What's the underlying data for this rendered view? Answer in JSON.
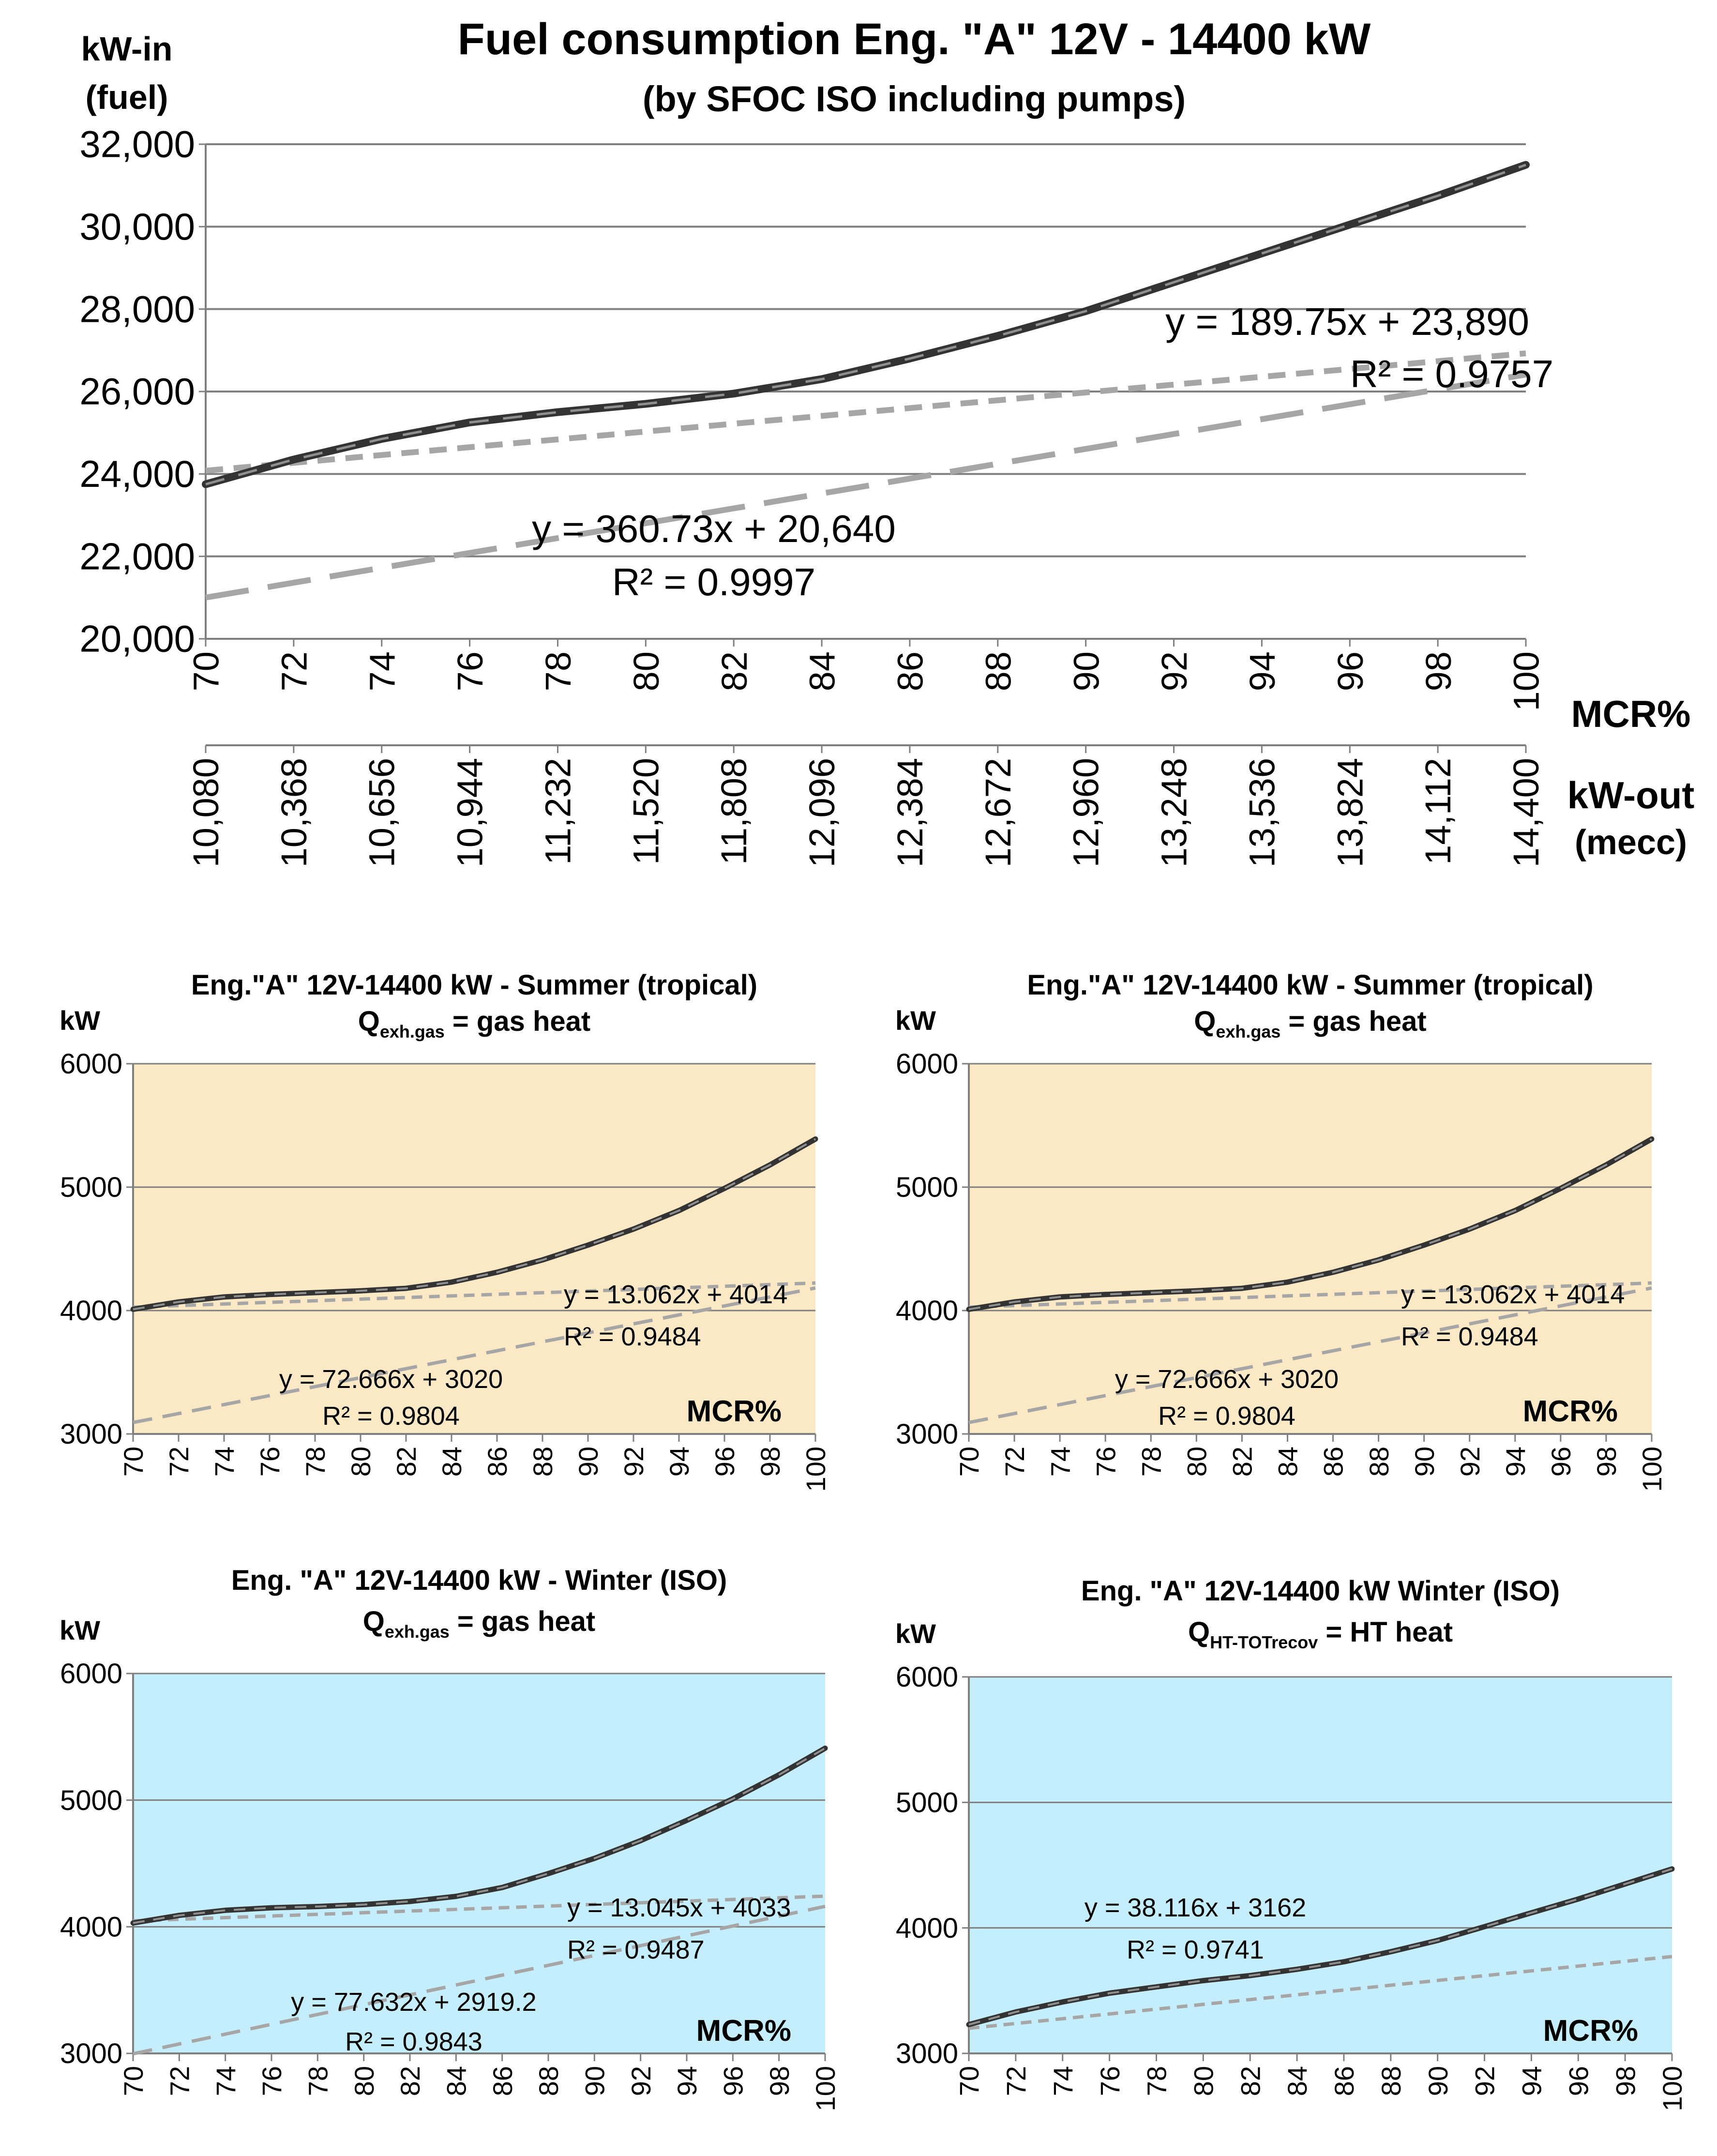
{
  "colors": {
    "background": "#ffffff",
    "summer_plot_bg": "#fbe8c4",
    "winter_plot_bg": "#c4eefb",
    "gridline": "#7f7f7f",
    "data_line": "#333333",
    "trend_line": "#a6a6a6"
  },
  "chart_data": [
    {
      "id": "fuel",
      "type": "line",
      "title": "Fuel consumption Eng. \"A\" 12V - 14400 kW",
      "subtitle": "(by SFOC ISO including pumps)",
      "ylabel": [
        "kW-in",
        "(fuel)"
      ],
      "xlabel": "MCR%",
      "x2label": [
        "kW-out",
        "(mecc)"
      ],
      "ylim": [
        20000,
        32000
      ],
      "yticks": [
        "20,000",
        "22,000",
        "24,000",
        "26,000",
        "28,000",
        "30,000",
        "32,000"
      ],
      "yvals": [
        20000,
        22000,
        24000,
        26000,
        28000,
        30000,
        32000
      ],
      "xlim": [
        70,
        100
      ],
      "xticks": [
        "70",
        "72",
        "74",
        "76",
        "78",
        "80",
        "82",
        "84",
        "86",
        "88",
        "90",
        "92",
        "94",
        "96",
        "98",
        "100"
      ],
      "x2ticks": [
        "10,080",
        "10,368",
        "10,656",
        "10,944",
        "11,232",
        "11,520",
        "11,808",
        "12,096",
        "12,384",
        "12,672",
        "12,960",
        "13,248",
        "13,536",
        "13,824",
        "14,112",
        "14,400"
      ],
      "grid": true,
      "series": [
        {
          "x": [
            70,
            72,
            74,
            76,
            78,
            80,
            82,
            84,
            86,
            88,
            90,
            92,
            94,
            96,
            98,
            100
          ],
          "y": [
            23750,
            24350,
            24850,
            25250,
            25500,
            25700,
            25950,
            26300,
            26800,
            27350,
            27950,
            28650,
            29350,
            30050,
            30750,
            31500
          ]
        }
      ],
      "trendlines": [
        {
          "label": "y = 189.75x + 23,890",
          "r2": "R² = 0.9757",
          "slope": 189.75,
          "intercept": 23890
        },
        {
          "label": "y = 360.73x + 20,640",
          "r2": "R² = 0.9997",
          "slope": 360.73,
          "intercept": 20640
        }
      ]
    },
    {
      "id": "summer1",
      "type": "line",
      "title": "Eng.\"A\" 12V-14400 kW - Summer (tropical)",
      "subtitle_main": "Q",
      "subtitle_sub": "exh.gas",
      "subtitle_rest": " = gas heat",
      "ylabel": "kW",
      "xlabel": "MCR%",
      "ylim": [
        3000,
        6000
      ],
      "yticks": [
        "3000",
        "4000",
        "5000",
        "6000"
      ],
      "xlim": [
        70,
        100
      ],
      "xticks": [
        "70",
        "72",
        "74",
        "76",
        "78",
        "80",
        "82",
        "84",
        "86",
        "88",
        "90",
        "92",
        "94",
        "96",
        "98",
        "100"
      ],
      "grid": true,
      "background": "summer",
      "series": [
        {
          "x": [
            70,
            72,
            74,
            76,
            78,
            80,
            82,
            84,
            86,
            88,
            90,
            92,
            94,
            96,
            98,
            100
          ],
          "y": [
            4010,
            4070,
            4110,
            4130,
            4145,
            4160,
            4180,
            4230,
            4310,
            4410,
            4530,
            4660,
            4810,
            4990,
            5180,
            5390
          ]
        }
      ],
      "trendlines": [
        {
          "label": "y = 13.062x + 4014",
          "r2": "R² = 0.9484",
          "slope": 13.062,
          "intercept": 4014
        },
        {
          "label": "y = 72.666x + 3020",
          "r2": "R² = 0.9804",
          "slope": 72.666,
          "intercept": 3020
        }
      ]
    },
    {
      "id": "summer2",
      "type": "line",
      "title": "Eng.\"A\" 12V-14400 kW - Summer (tropical)",
      "subtitle_main": "Q",
      "subtitle_sub": "exh.gas",
      "subtitle_rest": " = gas heat",
      "ylabel": "kW",
      "xlabel": "MCR%",
      "ylim": [
        3000,
        6000
      ],
      "yticks": [
        "3000",
        "4000",
        "5000",
        "6000"
      ],
      "xlim": [
        70,
        100
      ],
      "xticks": [
        "70",
        "72",
        "74",
        "76",
        "78",
        "80",
        "82",
        "84",
        "86",
        "88",
        "90",
        "92",
        "94",
        "96",
        "98",
        "100"
      ],
      "grid": true,
      "background": "summer",
      "series": [
        {
          "x": [
            70,
            72,
            74,
            76,
            78,
            80,
            82,
            84,
            86,
            88,
            90,
            92,
            94,
            96,
            98,
            100
          ],
          "y": [
            4010,
            4070,
            4110,
            4130,
            4145,
            4160,
            4180,
            4230,
            4310,
            4410,
            4530,
            4660,
            4810,
            4990,
            5180,
            5390
          ]
        }
      ],
      "trendlines": [
        {
          "label": "y = 13.062x + 4014",
          "r2": "R² = 0.9484",
          "slope": 13.062,
          "intercept": 4014
        },
        {
          "label": "y = 72.666x + 3020",
          "r2": "R² = 0.9804",
          "slope": 72.666,
          "intercept": 3020
        }
      ]
    },
    {
      "id": "winter1",
      "type": "line",
      "title": "Eng. \"A\" 12V-14400 kW -  Winter (ISO)",
      "subtitle_main": "Q",
      "subtitle_sub": "exh.gas",
      "subtitle_rest": " = gas heat",
      "ylabel": "kW",
      "xlabel": "MCR%",
      "ylim": [
        3000,
        6000
      ],
      "yticks": [
        "3000",
        "4000",
        "5000",
        "6000"
      ],
      "xlim": [
        70,
        100
      ],
      "xticks": [
        "70",
        "72",
        "74",
        "76",
        "78",
        "80",
        "82",
        "84",
        "86",
        "88",
        "90",
        "92",
        "94",
        "96",
        "98",
        "100"
      ],
      "grid": true,
      "background": "winter",
      "series": [
        {
          "x": [
            70,
            72,
            74,
            76,
            78,
            80,
            82,
            84,
            86,
            88,
            90,
            92,
            94,
            96,
            98,
            100
          ],
          "y": [
            4030,
            4090,
            4130,
            4150,
            4160,
            4175,
            4200,
            4240,
            4310,
            4420,
            4540,
            4680,
            4840,
            5010,
            5200,
            5410
          ]
        }
      ],
      "trendlines": [
        {
          "label": "y = 13.045x + 4033",
          "r2": "R² = 0.9487",
          "slope": 13.045,
          "intercept": 4033
        },
        {
          "label": "y = 77.632x + 2919.2",
          "r2": "R² = 0.9843",
          "slope": 77.632,
          "intercept": 2919.2
        }
      ]
    },
    {
      "id": "winter2",
      "type": "line",
      "title": "Eng. \"A\" 12V-14400 kW Winter (ISO)",
      "subtitle_main": "Q",
      "subtitle_sub": "HT-TOTrecov",
      "subtitle_rest": " = HT heat",
      "ylabel": "kW",
      "xlabel": "MCR%",
      "ylim": [
        3000,
        6000
      ],
      "yticks": [
        "3000",
        "4000",
        "5000",
        "6000"
      ],
      "xlim": [
        70,
        100
      ],
      "xticks": [
        "70",
        "72",
        "74",
        "76",
        "78",
        "80",
        "82",
        "84",
        "86",
        "88",
        "90",
        "92",
        "94",
        "96",
        "98",
        "100"
      ],
      "grid": true,
      "background": "winter",
      "series": [
        {
          "x": [
            70,
            72,
            74,
            76,
            78,
            80,
            82,
            84,
            86,
            88,
            90,
            92,
            94,
            96,
            98,
            100
          ],
          "y": [
            3230,
            3330,
            3410,
            3480,
            3530,
            3580,
            3620,
            3670,
            3730,
            3810,
            3900,
            4010,
            4120,
            4230,
            4350,
            4470
          ]
        }
      ],
      "trendlines": [
        {
          "label": "y = 38.116x + 3162",
          "r2": "R² = 0.9741",
          "slope": 38.116,
          "intercept": 3162
        }
      ]
    }
  ]
}
